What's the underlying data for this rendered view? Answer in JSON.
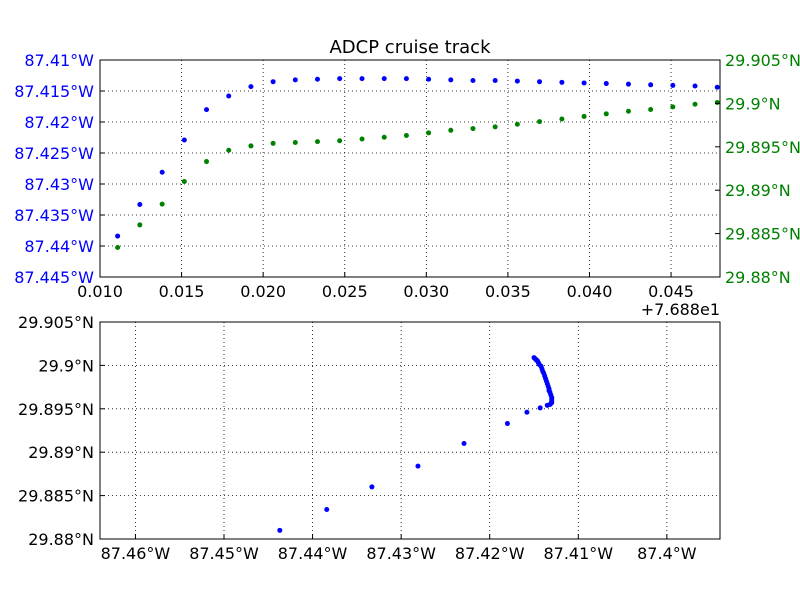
{
  "chart_data": [
    {
      "type": "scatter",
      "title": "ADCP cruise track",
      "xlabel": "",
      "ylabel": "",
      "x_offset_label": "+7.688e1",
      "xlim": [
        0.01,
        0.048
      ],
      "x_ticks": [
        0.01,
        0.015,
        0.02,
        0.025,
        0.03,
        0.035,
        0.04,
        0.045
      ],
      "x_tick_labels": [
        "0.010",
        "0.015",
        "0.020",
        "0.025",
        "0.030",
        "0.035",
        "0.040",
        "0.045"
      ],
      "y_left": {
        "color": "#0000ff",
        "lim": [
          -87.445,
          -87.41
        ],
        "ticks": [
          -87.41,
          -87.415,
          -87.42,
          -87.425,
          -87.43,
          -87.435,
          -87.44,
          -87.445
        ],
        "tick_labels": [
          "87.41°W",
          "87.415°W",
          "87.42°W",
          "87.425°W",
          "87.43°W",
          "87.435°W",
          "87.44°W",
          "87.445°W"
        ]
      },
      "y_right": {
        "color": "#008000",
        "lim": [
          29.88,
          29.905
        ],
        "ticks": [
          29.905,
          29.9,
          29.895,
          29.89,
          29.885,
          29.88
        ],
        "tick_labels": [
          "29.905°N",
          "29.9°N",
          "29.895°N",
          "29.89°N",
          "29.885°N",
          "29.88°N"
        ]
      },
      "grid": true,
      "series": [
        {
          "axis": "left",
          "color": "#0000ff",
          "x": [
            0.00972,
            0.01108,
            0.01244,
            0.01381,
            0.01517,
            0.01653,
            0.01789,
            0.01925,
            0.02061,
            0.02197,
            0.02333,
            0.02469,
            0.02606,
            0.02742,
            0.02878,
            0.03014,
            0.0315,
            0.03286,
            0.03422,
            0.03558,
            0.03694,
            0.03831,
            0.03967,
            0.04103,
            0.04239,
            0.04375,
            0.04511,
            0.04647,
            0.04783
          ],
          "y": [
            -87.4437,
            -87.4384,
            -87.4333,
            -87.4281,
            -87.4229,
            -87.418,
            -87.4158,
            -87.4143,
            -87.4135,
            -87.4132,
            -87.4131,
            -87.413,
            -87.413,
            -87.413,
            -87.413,
            -87.4131,
            -87.4132,
            -87.4133,
            -87.4133,
            -87.4134,
            -87.4135,
            -87.4136,
            -87.4137,
            -87.4138,
            -87.4139,
            -87.414,
            -87.4141,
            -87.4142,
            -87.4144
          ]
        },
        {
          "axis": "right",
          "color": "#008000",
          "x": [
            0.00972,
            0.01108,
            0.01244,
            0.01381,
            0.01517,
            0.01653,
            0.01789,
            0.01925,
            0.02061,
            0.02197,
            0.02333,
            0.02469,
            0.02606,
            0.02742,
            0.02878,
            0.03014,
            0.0315,
            0.03286,
            0.03422,
            0.03558,
            0.03694,
            0.03831,
            0.03967,
            0.04103,
            0.04239,
            0.04375,
            0.04511,
            0.04647,
            0.04783
          ],
          "y": [
            29.881,
            29.8834,
            29.886,
            29.8884,
            29.891,
            29.8933,
            29.8946,
            29.8951,
            29.8954,
            29.8955,
            29.8956,
            29.8957,
            29.8959,
            29.8961,
            29.8963,
            29.8966,
            29.8969,
            29.8971,
            29.8973,
            29.8976,
            29.8979,
            29.8982,
            29.8985,
            29.8988,
            29.8991,
            29.8993,
            29.8996,
            29.8999,
            29.9001
          ]
        }
      ]
    },
    {
      "type": "scatter",
      "title": "",
      "xlabel": "",
      "ylabel": "",
      "xlim": [
        -87.464,
        -87.394
      ],
      "ylim": [
        29.88,
        29.905
      ],
      "x_ticks": [
        -87.46,
        -87.45,
        -87.44,
        -87.43,
        -87.42,
        -87.41,
        -87.4
      ],
      "x_tick_labels": [
        "87.46°W",
        "87.45°W",
        "87.44°W",
        "87.43°W",
        "87.42°W",
        "87.41°W",
        "87.4°W"
      ],
      "y_ticks": [
        29.905,
        29.9,
        29.895,
        29.89,
        29.885,
        29.88
      ],
      "y_tick_labels": [
        "29.905°N",
        "29.9°N",
        "29.895°N",
        "29.89°N",
        "29.885°N",
        "29.88°N"
      ],
      "grid": true,
      "series": [
        {
          "color": "#0000ff",
          "x": [
            -87.4437,
            -87.4384,
            -87.4333,
            -87.4281,
            -87.4229,
            -87.418,
            -87.4158,
            -87.4143,
            -87.4135,
            -87.4132,
            -87.4131,
            -87.413,
            -87.413,
            -87.413,
            -87.413,
            -87.4131,
            -87.4132,
            -87.4133,
            -87.4133,
            -87.4134,
            -87.4135,
            -87.4136,
            -87.4137,
            -87.4138,
            -87.4139,
            -87.414,
            -87.4141,
            -87.4142,
            -87.4144,
            -87.4145,
            -87.4146,
            -87.4147,
            -87.4148,
            -87.4149,
            -87.415
          ],
          "y": [
            29.881,
            29.8834,
            29.886,
            29.8884,
            29.891,
            29.8933,
            29.8946,
            29.8951,
            29.8954,
            29.8955,
            29.8956,
            29.8957,
            29.8959,
            29.8961,
            29.8963,
            29.8966,
            29.8969,
            29.8971,
            29.8973,
            29.8976,
            29.8979,
            29.8982,
            29.8985,
            29.8988,
            29.8991,
            29.8993,
            29.8996,
            29.8999,
            29.9001,
            29.9003,
            29.9005,
            29.9006,
            29.9007,
            29.9008,
            29.9009
          ]
        }
      ]
    }
  ]
}
